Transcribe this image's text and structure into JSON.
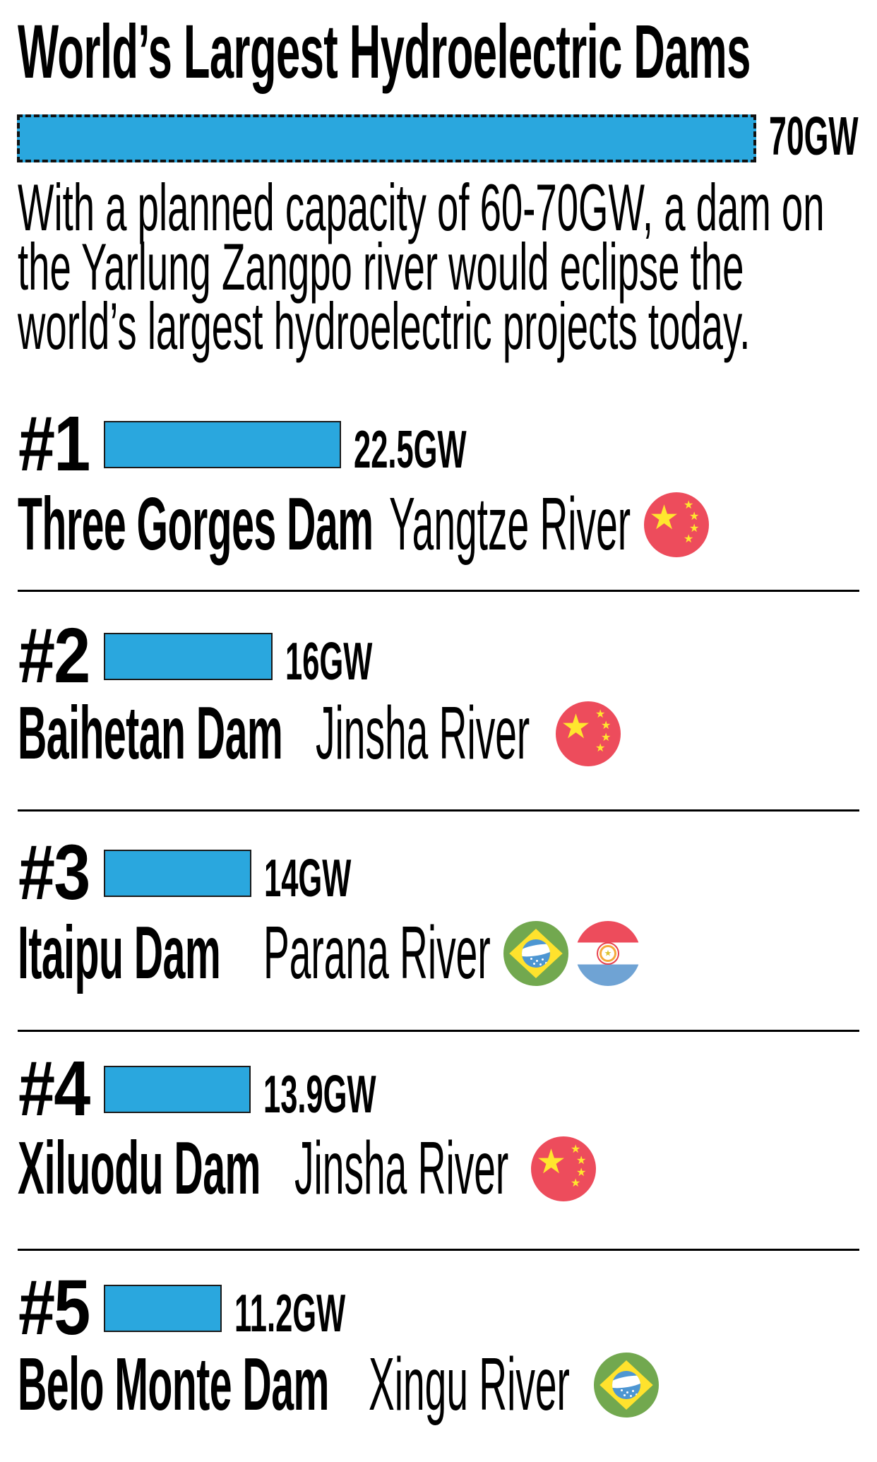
{
  "title": "World’s Largest Hydroelectric Dams",
  "unit": "GW",
  "colors": {
    "bar_blue": "#2AA7DE",
    "text": "#000000",
    "divider": "#000000",
    "flag_red": "#ED4C5C",
    "flag_star_yellow": "#FFE62E",
    "brazil_green": "#72A84F",
    "brazil_diamond_yellow": "#FFE22D",
    "brazil_globe_blue": "#4D96D2",
    "paraguay_blue": "#6FA3D4"
  },
  "planned": {
    "value_label": "70GW",
    "capacity_gw": 70,
    "description_lines": [
      "With a planned capacity of 60-70GW, a dam on",
      "the Yarlung Zangpo river would eclipse the",
      "world’s largest hydroelectric projects today."
    ]
  },
  "entries": [
    {
      "rank": "#1",
      "value_label": "22.5GW",
      "capacity_gw": 22.5,
      "dam": "Three Gorges Dam",
      "river": "Yangtze River",
      "flags": [
        "china-flag-icon"
      ]
    },
    {
      "rank": "#2",
      "value_label": "16GW",
      "capacity_gw": 16,
      "dam": "Baihetan Dam",
      "river": "Jinsha River",
      "flags": [
        "china-flag-icon"
      ]
    },
    {
      "rank": "#3",
      "value_label": "14GW",
      "capacity_gw": 14,
      "dam": "Itaipu Dam",
      "river": "Parana River",
      "flags": [
        "brazil-flag-icon",
        "paraguay-flag-icon"
      ]
    },
    {
      "rank": "#4",
      "value_label": "13.9GW",
      "capacity_gw": 13.9,
      "dam": "Xiluodu Dam",
      "river": "Jinsha River",
      "flags": [
        "china-flag-icon"
      ]
    },
    {
      "rank": "#5",
      "value_label": "11.2GW",
      "capacity_gw": 11.2,
      "dam": "Belo Monte Dam",
      "river": "Xingu River",
      "flags": [
        "brazil-flag-icon"
      ]
    }
  ],
  "chart_data": {
    "type": "bar",
    "orientation": "horizontal",
    "title": "World’s Largest Hydroelectric Dams",
    "categories": [
      "Planned Yarlung Zangpo dam",
      "Three Gorges Dam (Yangtze River, China)",
      "Baihetan Dam (Jinsha River, China)",
      "Itaipu Dam (Parana River, Brazil/Paraguay)",
      "Xiluodu Dam (Jinsha River, China)",
      "Belo Monte Dam (Xingu River, Brazil)"
    ],
    "values": [
      70,
      22.5,
      16,
      14,
      13.9,
      11.2
    ],
    "value_labels": [
      "70GW",
      "22.5GW",
      "16GW",
      "14GW",
      "13.9GW",
      "11.2GW"
    ],
    "unit": "GW",
    "xlim": [
      0,
      70
    ],
    "bar_color": "#2AA7DE",
    "planned_bar_style": "dashed-outline",
    "grid": false,
    "legend": false,
    "notes": "Top dashed bar shows planned 60-70GW capacity; bars #1-#5 are the largest existing hydroelectric dams."
  }
}
